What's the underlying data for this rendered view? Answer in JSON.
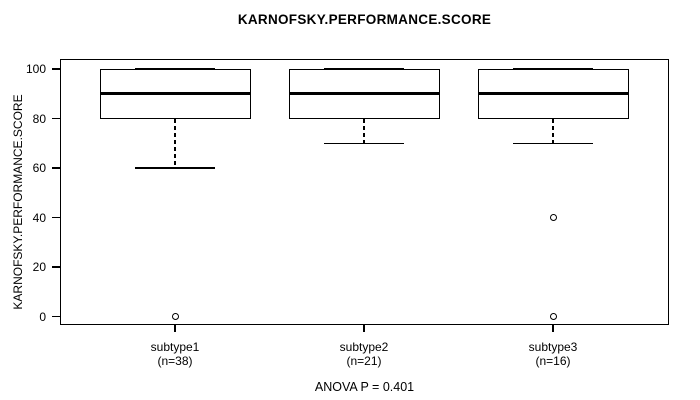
{
  "chart_data": {
    "type": "boxplot",
    "title": "KARNOFSKY.PERFORMANCE.SCORE",
    "ylabel": "KARNOFSKY.PERFORMANCE.SCORE",
    "footer": "ANOVA P = 0.401",
    "ylim": [
      0,
      100
    ],
    "yticks": [
      0,
      20,
      40,
      60,
      80,
      100
    ],
    "grid": false,
    "legend": "none",
    "groups": [
      {
        "label": "subtype1",
        "sublabel": "(n=38)",
        "n": 38,
        "whisker_low": 60,
        "q1": 80,
        "median": 90,
        "q3": 100,
        "whisker_high": 100,
        "outliers": [
          0
        ]
      },
      {
        "label": "subtype2",
        "sublabel": "(n=21)",
        "n": 21,
        "whisker_low": 70,
        "q1": 80,
        "median": 90,
        "q3": 100,
        "whisker_high": 100,
        "outliers": []
      },
      {
        "label": "subtype3",
        "sublabel": "(n=16)",
        "n": 16,
        "whisker_low": 70,
        "q1": 80,
        "median": 90,
        "q3": 100,
        "whisker_high": 100,
        "outliers": [
          40,
          0
        ]
      }
    ],
    "colors": {
      "line": "#000000",
      "background": "#ffffff",
      "text": "#000000"
    }
  }
}
